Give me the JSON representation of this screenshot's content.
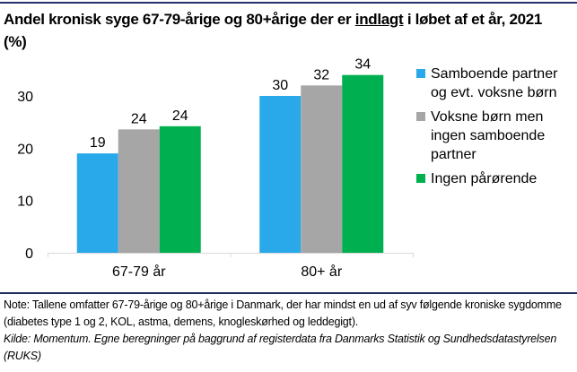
{
  "title": {
    "before": "Andel kronisk syge 67-79-årige og 80+årige der er ",
    "underlined": "indlagt",
    "after": " i løbet af et år, 2021 (%)"
  },
  "chart_data": {
    "type": "bar",
    "title": "Andel kronisk syge 67-79-årige og 80+årige der er indlagt i løbet af et år, 2021 (%)",
    "xlabel": "",
    "ylabel": "",
    "categories": [
      "67-79 år",
      "80+ år"
    ],
    "series": [
      {
        "name": "Samboende partner og evt. voksne børn",
        "color": "#29a8ea",
        "values": [
          19,
          30
        ],
        "labels": [
          "19",
          "30"
        ]
      },
      {
        "name": "Voksne børn men ingen samboende partner",
        "color": "#a6a6a6",
        "values": [
          23.6,
          32
        ],
        "labels": [
          "24",
          "32"
        ]
      },
      {
        "name": "Ingen pårørende",
        "color": "#00b050",
        "values": [
          24.2,
          34
        ],
        "labels": [
          "24",
          "34"
        ]
      }
    ],
    "ylim": [
      0,
      35
    ],
    "yticks": [
      0,
      10,
      20,
      30
    ],
    "grid": false,
    "legend_position": "right"
  },
  "legend": [
    {
      "label": "Samboende partner og evt. voksne børn",
      "color": "#29a8ea"
    },
    {
      "label": "Voksne børn men ingen samboende partner",
      "color": "#a6a6a6"
    },
    {
      "label": "Ingen pårørende",
      "color": "#00b050"
    }
  ],
  "notes": {
    "note": "Note: Tallene omfatter 67-79-årige og 80+årige i Danmark, der har mindst en ud af syv følgende kroniske sygdomme (diabetes type 1 og 2, KOL, astma, demens, knogleskørhed og leddegigt).",
    "source": "Kilde: Momentum. Egne beregninger på baggrund af registerdata fra Danmarks Statistik og Sundhedsdatastyrelsen (RUKS)"
  }
}
